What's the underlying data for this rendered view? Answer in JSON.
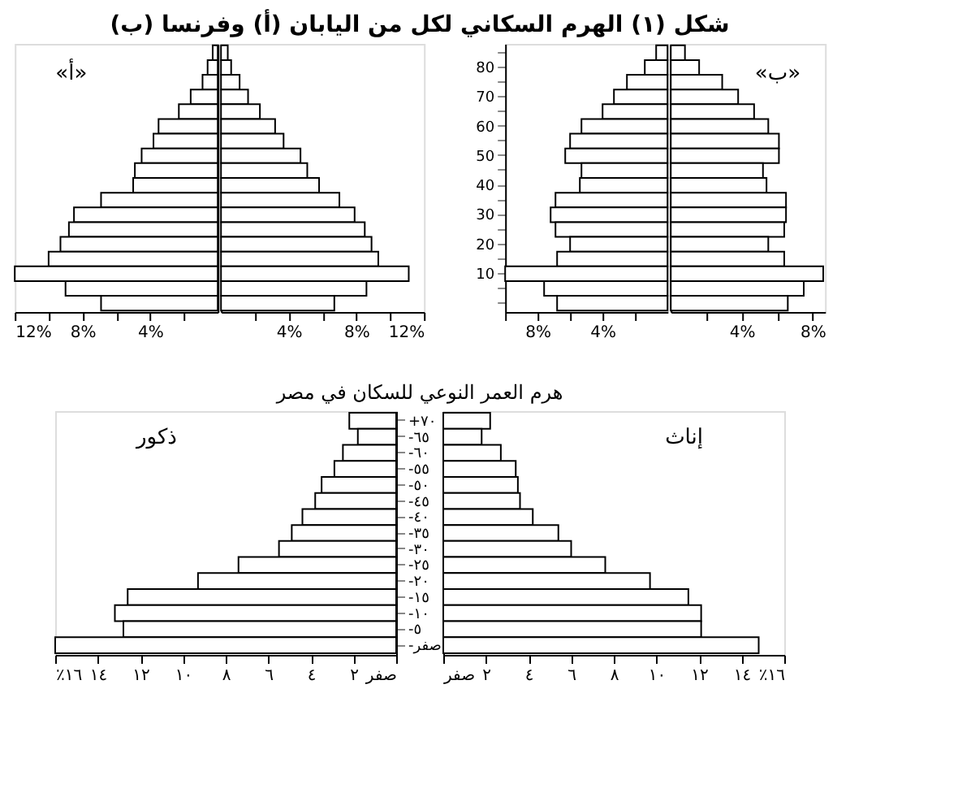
{
  "chart_data": [
    {
      "type": "bar",
      "orientation": "horizontal",
      "title": "شكل (١) الهرم السكاني لكل من اليابان (أ) وفرنسا (ب)",
      "annotations": [
        "«أ»"
      ],
      "categories": [
        null,
        null,
        null,
        null,
        null,
        null,
        null,
        null,
        null,
        null,
        null,
        null,
        null,
        null,
        null,
        null,
        null,
        null
      ],
      "values": [
        0.3,
        0.6,
        0.9,
        1.6,
        2.3,
        3.5,
        3.8,
        4.5,
        4.9,
        5.0,
        6.9,
        8.5,
        8.8,
        9.3,
        10.0,
        12.0,
        9.0,
        6.9
      ],
      "color": "#ffffff",
      "xlim": [
        12,
        0
      ],
      "xticks": [
        {
          "value": 12,
          "label": "12%"
        },
        {
          "value": 10,
          "label": null
        },
        {
          "value": 8,
          "label": "8%"
        },
        {
          "value": 6,
          "label": null
        },
        {
          "value": 4,
          "label": "4%"
        },
        {
          "value": 2,
          "label": null
        }
      ],
      "tick_labels": "x",
      "grid": false
    },
    {
      "type": "bar",
      "orientation": "horizontal",
      "categories": [
        null,
        null,
        null,
        null,
        null,
        null,
        null,
        null,
        null,
        null,
        null,
        null,
        null,
        null,
        null,
        null,
        null,
        null
      ],
      "values": [
        0.4,
        0.6,
        1.1,
        1.6,
        2.3,
        3.2,
        3.7,
        4.7,
        5.1,
        5.8,
        7.0,
        7.9,
        8.5,
        8.9,
        9.3,
        11.1,
        8.6,
        6.7
      ],
      "color": "#ffffff",
      "xlim": [
        0,
        12
      ],
      "xticks": [
        {
          "value": 2,
          "label": null
        },
        {
          "value": 4,
          "label": "4%"
        },
        {
          "value": 6,
          "label": null
        },
        {
          "value": 8,
          "label": "8%"
        },
        {
          "value": 10,
          "label": null
        },
        {
          "value": 12,
          "label": "12%"
        }
      ],
      "tick_labels": "x",
      "grid": false
    },
    {
      "type": "bar",
      "orientation": "horizontal",
      "categories": [
        null,
        "80",
        null,
        "70",
        null,
        "60",
        null,
        "50",
        null,
        "40",
        null,
        "30",
        null,
        "20",
        null,
        "10",
        null,
        null
      ],
      "values": [
        0.7,
        1.4,
        2.5,
        3.3,
        4.0,
        5.3,
        6.0,
        6.3,
        5.3,
        5.4,
        6.9,
        7.2,
        6.9,
        6.0,
        6.8,
        10.0,
        7.6,
        6.8
      ],
      "color": "#ffffff",
      "xlim": [
        10,
        0
      ],
      "xticks": [
        {
          "value": 10,
          "label": null
        },
        {
          "value": 8,
          "label": "8%"
        },
        {
          "value": 6,
          "label": null
        },
        {
          "value": 4,
          "label": "4%"
        },
        {
          "value": 2,
          "label": null
        }
      ],
      "grid": false
    },
    {
      "type": "bar",
      "orientation": "horizontal",
      "annotations": [
        "«ب»"
      ],
      "categories": [
        null,
        null,
        null,
        null,
        null,
        null,
        null,
        null,
        null,
        null,
        null,
        null,
        null,
        null,
        null,
        null,
        null,
        null
      ],
      "values": [
        0.8,
        1.6,
        2.9,
        3.8,
        4.7,
        5.5,
        6.1,
        6.1,
        5.2,
        5.4,
        6.5,
        6.5,
        6.4,
        5.5,
        6.4,
        8.6,
        7.5,
        6.6
      ],
      "color": "#ffffff",
      "xlim": [
        0,
        8.7
      ],
      "xticks": [
        {
          "value": 2,
          "label": null
        },
        {
          "value": 4,
          "label": "4%"
        },
        {
          "value": 6,
          "label": null
        },
        {
          "value": 8,
          "label": "8%"
        }
      ],
      "tick_labels": "x",
      "grid": false
    },
    {
      "type": "bar",
      "orientation": "horizontal",
      "title": "هرم العمر النوعي للسكان في مصر",
      "annotations": [
        "ذكور"
      ],
      "categories": [
        "+٧٠",
        "-٦٥",
        "-٦٠",
        "-٥٥",
        "-٥٠",
        "-٤٥",
        "-٤٠",
        "-٣٥",
        "-٣٠",
        "-٢٥",
        "-٢٠",
        "-١٥",
        "-١٠",
        "-٥",
        "-صفر"
      ],
      "values": [
        2.2,
        1.8,
        2.5,
        2.9,
        3.5,
        3.8,
        4.4,
        4.9,
        5.5,
        7.4,
        9.3,
        12.6,
        13.2,
        12.8,
        16.0
      ],
      "color": "#ffffff",
      "xlim": [
        16,
        0
      ],
      "xticks": [
        {
          "value": 16,
          "label": "٪١٦"
        },
        {
          "value": 14,
          "label": "١٤"
        },
        {
          "value": 12,
          "label": "١٢"
        },
        {
          "value": 10,
          "label": "١٠"
        },
        {
          "value": 8,
          "label": "٨"
        },
        {
          "value": 6,
          "label": "٦"
        },
        {
          "value": 4,
          "label": "٤"
        },
        {
          "value": 2,
          "label": "٢"
        },
        {
          "value": 0,
          "label": "صفر"
        }
      ],
      "grid": false
    },
    {
      "type": "bar",
      "orientation": "horizontal",
      "annotations": [
        "إناث"
      ],
      "categories": [
        null,
        null,
        null,
        null,
        null,
        null,
        null,
        null,
        null,
        null,
        null,
        null,
        null,
        null,
        null
      ],
      "values": [
        2.2,
        1.8,
        2.7,
        3.4,
        3.5,
        3.6,
        4.2,
        5.4,
        6.0,
        7.6,
        9.7,
        11.5,
        12.1,
        12.1,
        14.8
      ],
      "color": "#ffffff",
      "xlim": [
        0,
        16
      ],
      "xticks": [
        {
          "value": 0,
          "label": "صفر"
        },
        {
          "value": 2,
          "label": "٢"
        },
        {
          "value": 4,
          "label": "٤"
        },
        {
          "value": 6,
          "label": "٦"
        },
        {
          "value": 8,
          "label": "٨"
        },
        {
          "value": 10,
          "label": "١٠"
        },
        {
          "value": 12,
          "label": "١٢"
        },
        {
          "value": 14,
          "label": "١٤"
        },
        {
          "value": 16,
          "label": "٪١٦"
        }
      ],
      "tick_labels": "x",
      "grid": false
    }
  ]
}
